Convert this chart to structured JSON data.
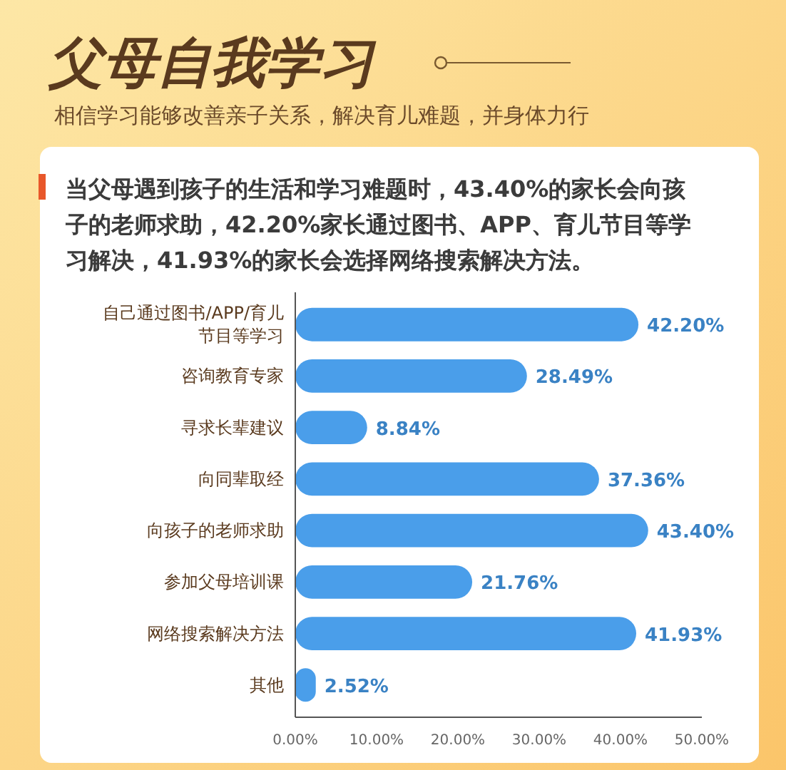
{
  "chart_data": {
    "type": "bar",
    "orientation": "horizontal",
    "title": "父母自我学习",
    "subtitle": "相信学习能够改善亲子关系，解决育儿难题，并身体力行",
    "annotations": [
      "当父母遇到孩子的生活和学习难题时，43.40%的家长会向孩子的老师求助，42.20%家长通过图书、APP、育儿节目等学习解决，41.93%的家长会选择网络搜索解决方法。"
    ],
    "categories": [
      "自己通过图书/APP/育儿节目等学习",
      "咨询教育专家",
      "寻求长辈建议",
      "向同辈取经",
      "向孩子的老师求助",
      "参加父母培训课",
      "网络搜索解决方法",
      "其他"
    ],
    "values": [
      42.2,
      28.49,
      8.84,
      37.36,
      43.4,
      21.76,
      41.93,
      2.52
    ],
    "value_labels": [
      "42.20%",
      "28.49%",
      "8.84%",
      "37.36%",
      "43.40%",
      "21.76%",
      "41.93%",
      "2.52%"
    ],
    "color": "#4a9eea",
    "xlim": [
      0,
      50
    ],
    "xticks": [
      {
        "value": 0,
        "label": "0.00%"
      },
      {
        "value": 10,
        "label": "10.00%"
      },
      {
        "value": 20,
        "label": "20.00%"
      },
      {
        "value": 30,
        "label": "30.00%"
      },
      {
        "value": 40,
        "label": "40.00%"
      },
      {
        "value": 50,
        "label": "50.00%"
      }
    ],
    "grid": false
  }
}
